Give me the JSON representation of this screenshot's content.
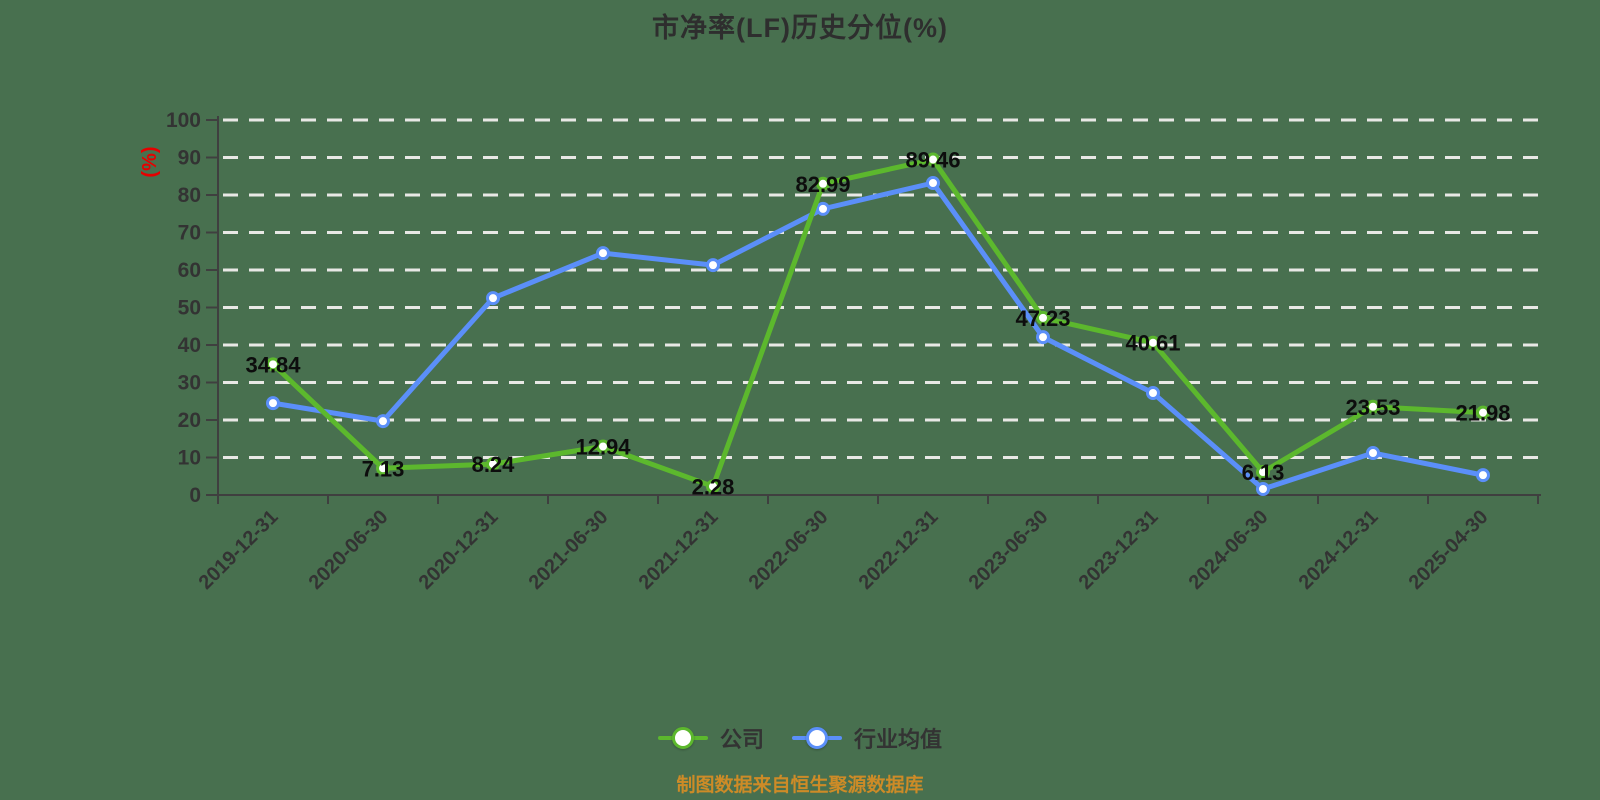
{
  "page": {
    "background_color": "#48704f"
  },
  "header": {
    "title": "市净率(LF)历史分位(%)"
  },
  "footer": {
    "source_note": "制图数据来自恒生聚源数据库",
    "source_color": "#cd8b27"
  },
  "chart_data": {
    "type": "line",
    "title": "市净率(LF)历史分位(%)",
    "xlabel": "",
    "ylabel": "(%)",
    "ylabel_color": "#e60000",
    "ylim": [
      0,
      100
    ],
    "y_ticks": [
      0,
      10,
      20,
      30,
      40,
      50,
      60,
      70,
      80,
      90,
      100
    ],
    "grid": true,
    "grid_style": "dashed",
    "legend_position": "bottom",
    "theme": {
      "axis_color": "#3f3f3f",
      "grid_color": "#e8e8e5",
      "text_color": "#333333",
      "label_color": "#0d0d0d"
    },
    "categories": [
      "2019-12-31",
      "2020-06-30",
      "2020-12-31",
      "2021-06-30",
      "2021-12-31",
      "2022-06-30",
      "2022-12-31",
      "2023-06-30",
      "2023-12-31",
      "2024-06-30",
      "2024-12-31",
      "2025-04-30"
    ],
    "series": [
      {
        "id": "company",
        "name": "公司",
        "color": "#5cb82d",
        "show_labels": true,
        "values": [
          34.84,
          7.13,
          8.24,
          12.94,
          2.28,
          82.99,
          89.46,
          47.23,
          40.61,
          6.13,
          23.53,
          21.98
        ]
      },
      {
        "id": "industry-average",
        "name": "行业均值",
        "color": "#5b8ff9",
        "show_labels": false,
        "values": [
          24.5,
          19.7,
          52.5,
          64.5,
          61.3,
          76.3,
          83.2,
          42.1,
          27.2,
          1.6,
          11.2,
          5.3
        ]
      }
    ]
  }
}
